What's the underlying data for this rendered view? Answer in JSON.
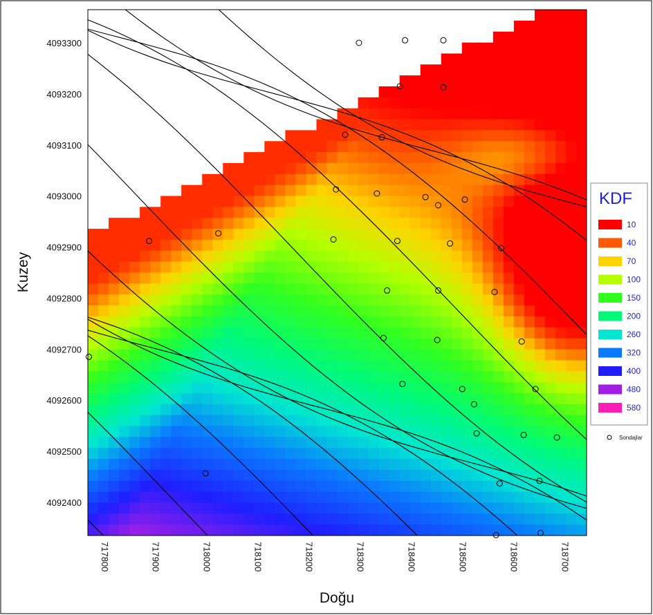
{
  "chart_data": {
    "type": "heatmap",
    "subtype": "filled-contour-map",
    "xlabel": "Doğu",
    "ylabel": "Kuzey",
    "xlim": [
      717780,
      718755
    ],
    "ylim": [
      4092335,
      4093365
    ],
    "x_ticks": [
      "717800",
      "717900",
      "718000",
      "718100",
      "718200",
      "718300",
      "718400",
      "718500",
      "718600",
      "718700"
    ],
    "y_ticks": [
      "4092400",
      "4092500",
      "4092600",
      "4092700",
      "4092800",
      "4092900",
      "4093000",
      "4093100",
      "4093200",
      "4093300"
    ],
    "legend": {
      "title": "KDF",
      "levels": [
        {
          "label": "10",
          "color": "#ff0000"
        },
        {
          "label": "40",
          "color": "#ff5a00"
        },
        {
          "label": "70",
          "color": "#ffd200"
        },
        {
          "label": "100",
          "color": "#b4ff00"
        },
        {
          "label": "150",
          "color": "#32ff1e"
        },
        {
          "label": "200",
          "color": "#00fa78"
        },
        {
          "label": "260",
          "color": "#00e6d2"
        },
        {
          "label": "320",
          "color": "#0a78ff"
        },
        {
          "label": "400",
          "color": "#1e1eff"
        },
        {
          "label": "480",
          "color": "#a01ee6"
        },
        {
          "label": "580",
          "color": "#ff1eb4"
        }
      ],
      "marker_label": "Sondajlar"
    },
    "points": [
      {
        "x": 718310,
        "y": 4093300
      },
      {
        "x": 718400,
        "y": 4093305
      },
      {
        "x": 718475,
        "y": 4093305
      },
      {
        "x": 718390,
        "y": 4093215
      },
      {
        "x": 718475,
        "y": 4093213
      },
      {
        "x": 718283,
        "y": 4093120
      },
      {
        "x": 718355,
        "y": 4093115
      },
      {
        "x": 718265,
        "y": 4093013
      },
      {
        "x": 718345,
        "y": 4093005
      },
      {
        "x": 718440,
        "y": 4092998
      },
      {
        "x": 718465,
        "y": 4092982
      },
      {
        "x": 718517,
        "y": 4092993
      },
      {
        "x": 717900,
        "y": 4092912
      },
      {
        "x": 718035,
        "y": 4092927
      },
      {
        "x": 718260,
        "y": 4092915
      },
      {
        "x": 718385,
        "y": 4092912
      },
      {
        "x": 718488,
        "y": 4092907
      },
      {
        "x": 718588,
        "y": 4092898
      },
      {
        "x": 718365,
        "y": 4092815
      },
      {
        "x": 718465,
        "y": 4092815
      },
      {
        "x": 718575,
        "y": 4092812
      },
      {
        "x": 718358,
        "y": 4092722
      },
      {
        "x": 718463,
        "y": 4092718
      },
      {
        "x": 718628,
        "y": 4092715
      },
      {
        "x": 717782,
        "y": 4092685
      },
      {
        "x": 718395,
        "y": 4092632
      },
      {
        "x": 718512,
        "y": 4092622
      },
      {
        "x": 718655,
        "y": 4092622
      },
      {
        "x": 718535,
        "y": 4092592
      },
      {
        "x": 718540,
        "y": 4092535
      },
      {
        "x": 718632,
        "y": 4092532
      },
      {
        "x": 718697,
        "y": 4092527
      },
      {
        "x": 718010,
        "y": 4092457
      },
      {
        "x": 718585,
        "y": 4092437
      },
      {
        "x": 718663,
        "y": 4092442
      },
      {
        "x": 718578,
        "y": 4092336
      },
      {
        "x": 718665,
        "y": 4092340
      }
    ],
    "grid": false
  }
}
